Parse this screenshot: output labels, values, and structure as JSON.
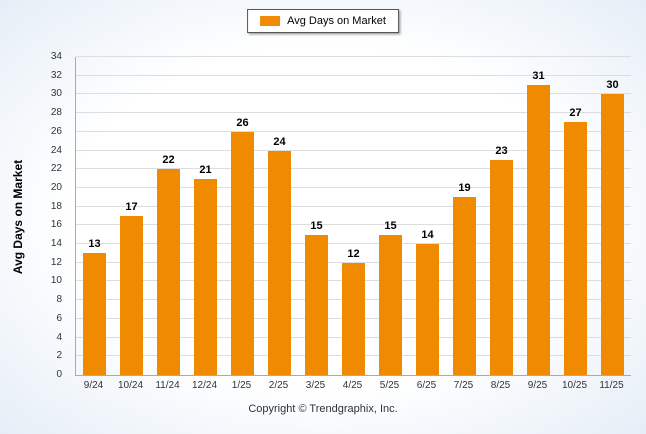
{
  "legend": {
    "label": "Avg Days on Market"
  },
  "y_axis": {
    "title": "Avg Days on Market"
  },
  "footer": {
    "text": "Copyright © Trendgraphix, Inc."
  },
  "chart_data": {
    "type": "bar",
    "title": "Avg Days on Market",
    "categories": [
      "9/24",
      "10/24",
      "11/24",
      "12/24",
      "1/25",
      "2/25",
      "3/25",
      "4/25",
      "5/25",
      "6/25",
      "7/25",
      "8/25",
      "9/25",
      "10/25",
      "11/25"
    ],
    "values": [
      13,
      17,
      22,
      21,
      26,
      24,
      15,
      12,
      15,
      14,
      19,
      23,
      31,
      27,
      30
    ],
    "xlabel": "",
    "ylabel": "Avg Days on Market",
    "ylim": [
      0,
      34
    ],
    "ytick_step": 2,
    "bar_color": "#F08A00",
    "grid": true,
    "legend_position": "top-center"
  }
}
